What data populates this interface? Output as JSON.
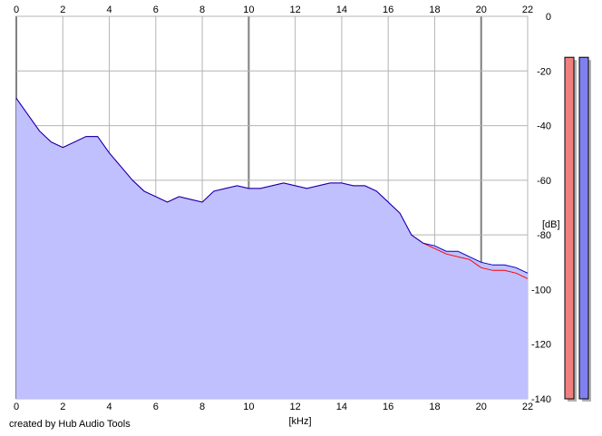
{
  "footer": {
    "credit": "created by Hub Audio Tools"
  },
  "chart_data": {
    "type": "area",
    "x_ticks": [
      "0",
      "2",
      "4",
      "6",
      "8",
      "10",
      "12",
      "14",
      "16",
      "18",
      "20",
      "22"
    ],
    "y_ticks": [
      "0",
      "-20",
      "-40",
      "-60",
      "-80",
      "-100",
      "-120",
      "-140"
    ],
    "xlabel": "[kHz]",
    "ylabel": "[dB]",
    "xlim": [
      0,
      22
    ],
    "ylim": [
      -140,
      0
    ],
    "grid": true,
    "series": [
      {
        "channel": "left",
        "color": "#ff0000",
        "x": [
          0,
          0.5,
          1,
          1.5,
          2,
          2.5,
          3,
          3.5,
          4,
          4.5,
          5,
          5.5,
          6,
          6.5,
          7,
          7.5,
          8,
          8.5,
          9,
          9.5,
          10,
          10.5,
          11,
          11.5,
          12,
          12.5,
          13,
          13.5,
          14,
          14.5,
          15,
          15.5,
          16,
          16.5,
          17,
          17.5,
          18,
          18.5,
          19,
          19.5,
          20,
          20.5,
          21,
          21.5,
          22
        ],
        "y": [
          -30,
          -36,
          -42,
          -46,
          -48,
          -46,
          -44,
          -44,
          -50,
          -55,
          -60,
          -64,
          -66,
          -68,
          -66,
          -67,
          -68,
          -64,
          -63,
          -62,
          -63,
          -63,
          -62,
          -61,
          -62,
          -63,
          -62,
          -61,
          -61,
          -62,
          -62,
          -64,
          -68,
          -72,
          -80,
          -83,
          -85,
          -87,
          -88,
          -89,
          -92,
          -93,
          -93,
          -94,
          -96
        ]
      },
      {
        "channel": "right",
        "color": "#0000c8",
        "x": [
          0,
          0.5,
          1,
          1.5,
          2,
          2.5,
          3,
          3.5,
          4,
          4.5,
          5,
          5.5,
          6,
          6.5,
          7,
          7.5,
          8,
          8.5,
          9,
          9.5,
          10,
          10.5,
          11,
          11.5,
          12,
          12.5,
          13,
          13.5,
          14,
          14.5,
          15,
          15.5,
          16,
          16.5,
          17,
          17.5,
          18,
          18.5,
          19,
          19.5,
          20,
          20.5,
          21,
          21.5,
          22
        ],
        "y": [
          -30,
          -36,
          -42,
          -46,
          -48,
          -46,
          -44,
          -44,
          -50,
          -55,
          -60,
          -64,
          -66,
          -68,
          -66,
          -67,
          -68,
          -64,
          -63,
          -62,
          -63,
          -63,
          -62,
          -61,
          -62,
          -63,
          -62,
          -61,
          -61,
          -62,
          -62,
          -64,
          -68,
          -72,
          -80,
          -83,
          -84,
          -86,
          -86,
          -88,
          -90,
          -91,
          -91,
          -92,
          -94
        ]
      }
    ],
    "fill_color": "#c0c0ff",
    "meters": [
      {
        "channel": "left",
        "color": "#f08080",
        "level_db": -15
      },
      {
        "channel": "right",
        "color": "#8080f0",
        "level_db": -15
      }
    ]
  }
}
